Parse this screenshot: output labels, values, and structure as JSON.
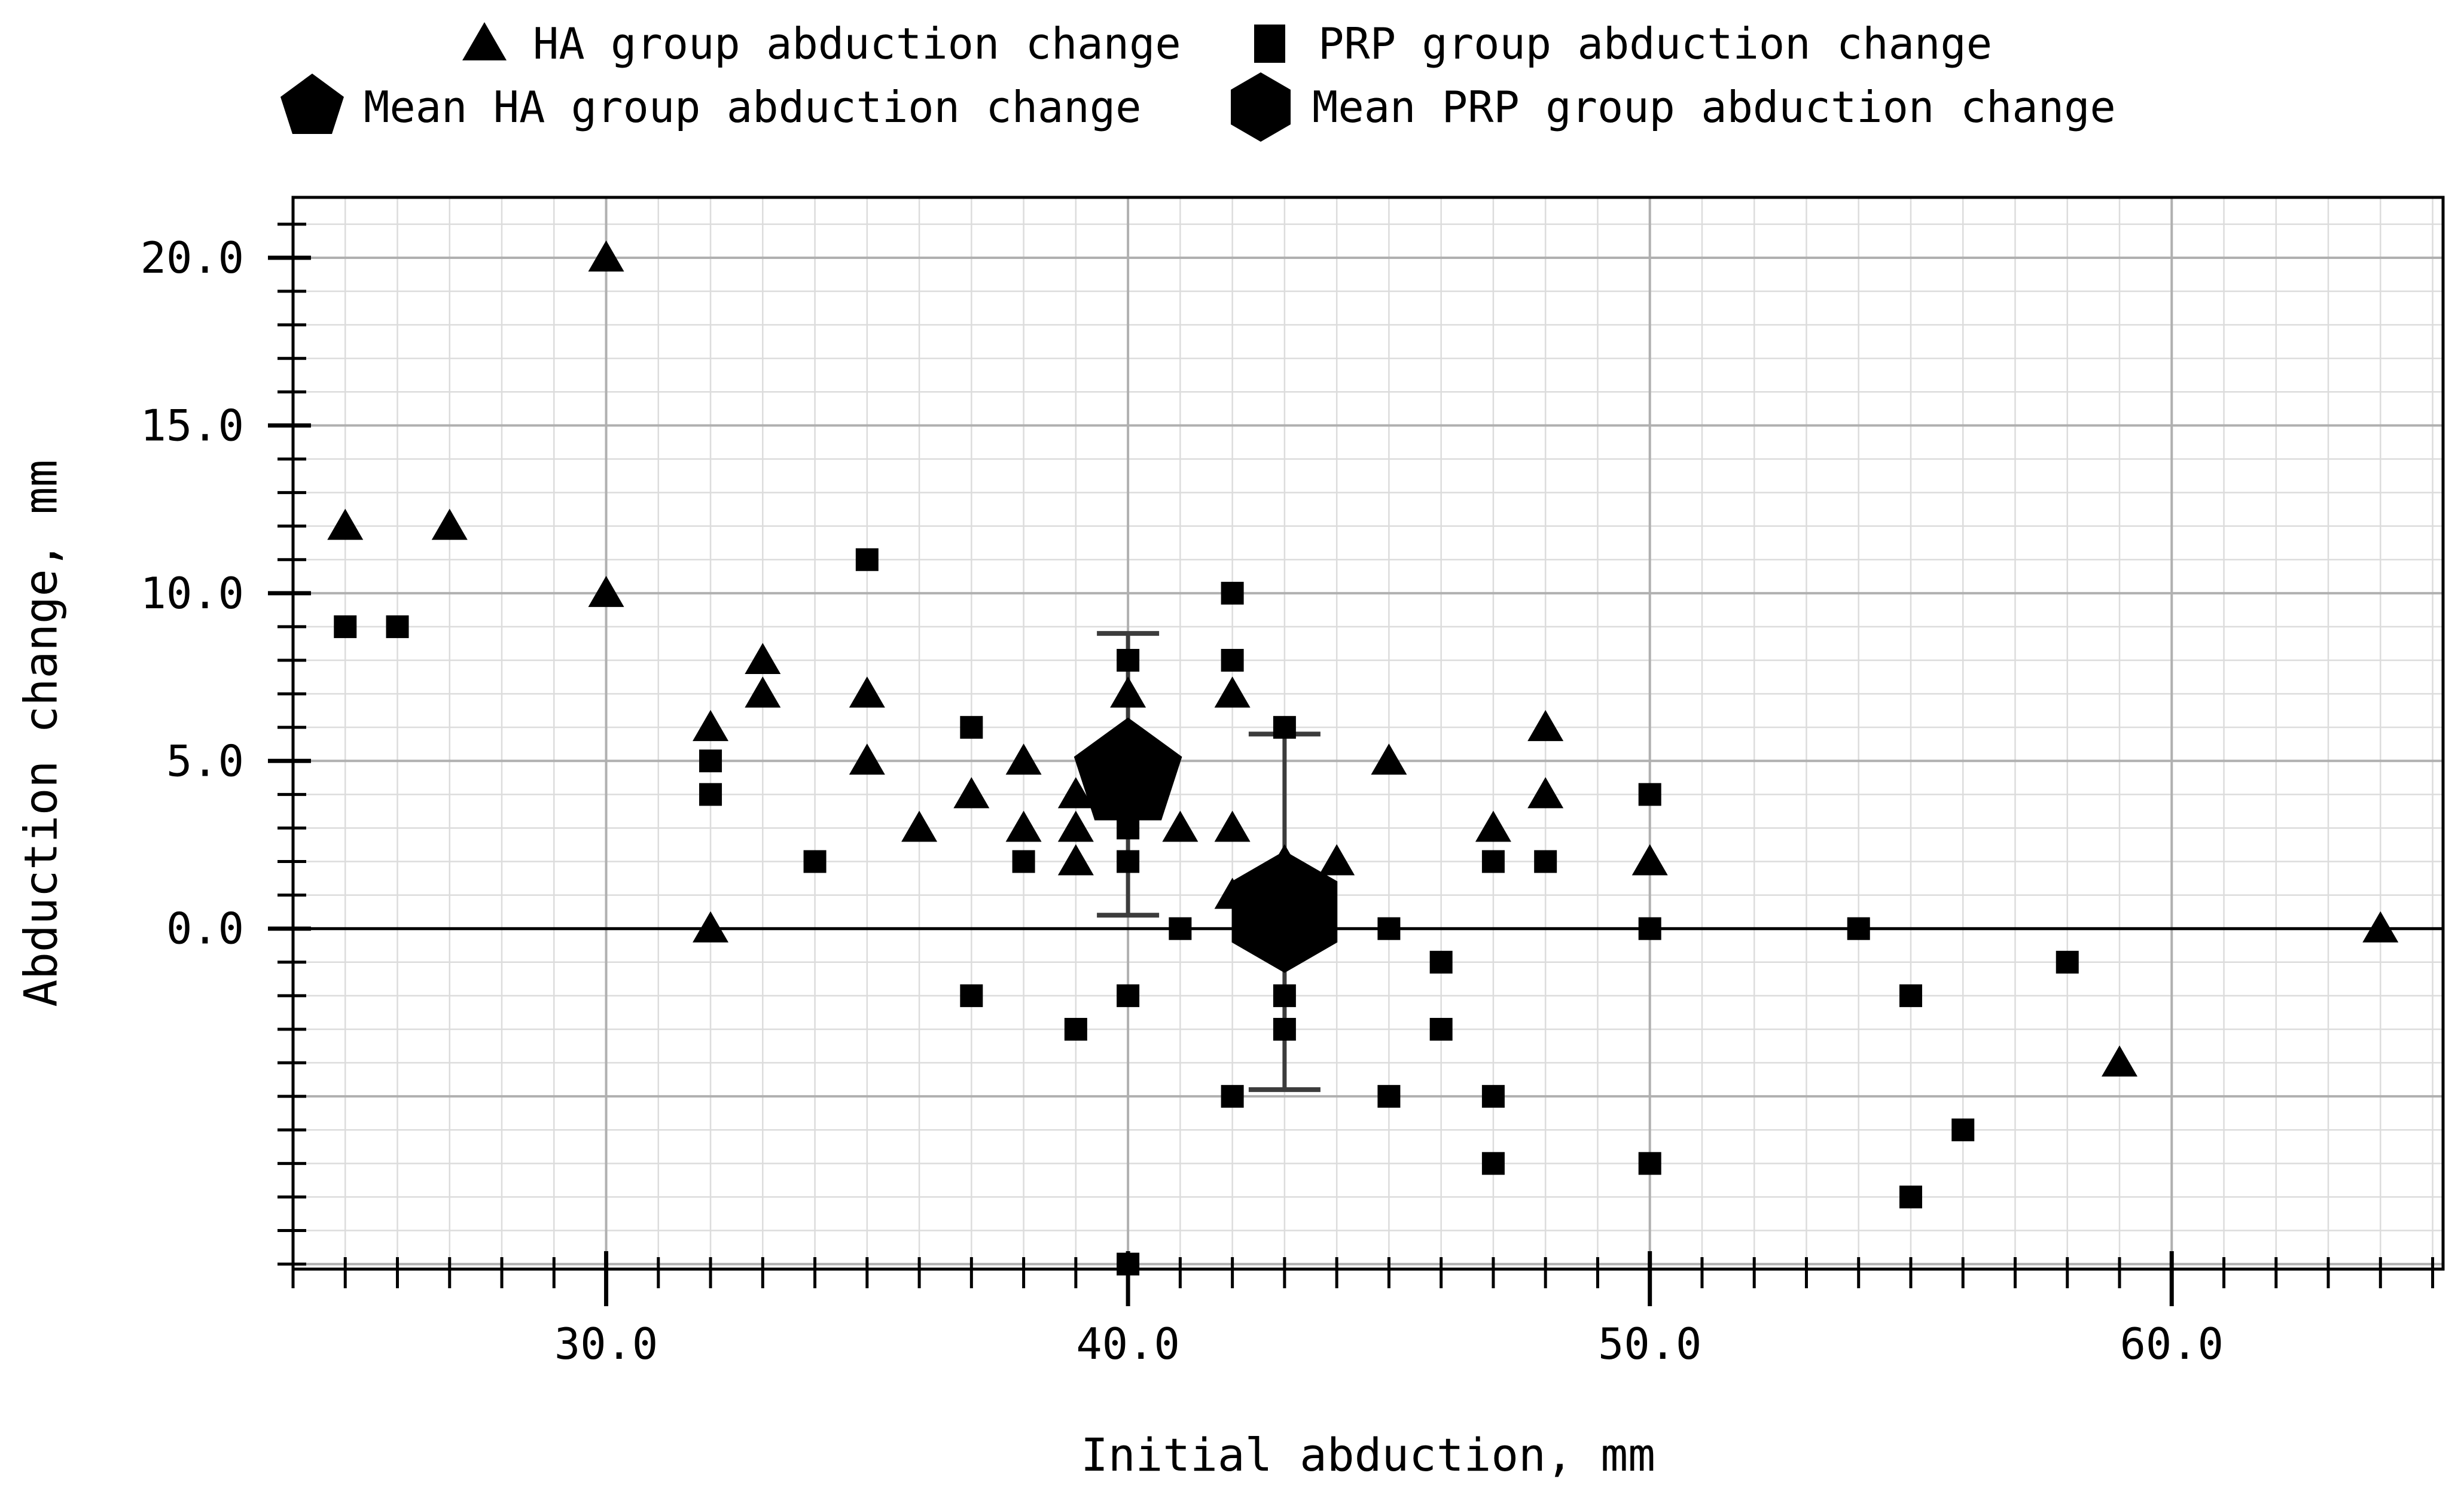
{
  "figure": {
    "background": "#ffffff",
    "ink_color": "#000000"
  },
  "legend": {
    "items": [
      {
        "marker": "triangle",
        "label": "HA group abduction change"
      },
      {
        "marker": "square",
        "label": "PRP group abduction change"
      },
      {
        "marker": "pentagon",
        "label": "Mean HA group abduction change"
      },
      {
        "marker": "hexagon",
        "label": "Mean PRP group abduction change"
      }
    ]
  },
  "axes": {
    "xlabel": "Initial abduction, mm",
    "ylabel": "Abduction change, mm",
    "x_ticks": [
      30,
      40,
      50,
      60
    ],
    "x_tick_labels": [
      "30.0",
      "40.0",
      "50.0",
      "60.0"
    ],
    "y_ticks": [
      0,
      5,
      10,
      15,
      20
    ],
    "y_tick_labels": [
      "0.0",
      "5.0",
      "10.0",
      "15.0",
      "20.0"
    ],
    "x_minor_step": 1,
    "y_minor_step": 1,
    "xlim": [
      24,
      65.2
    ],
    "ylim": [
      -10.15,
      21.8
    ],
    "grid": true,
    "zero_line": true
  },
  "chart_data": {
    "type": "scatter",
    "xlabel": "Initial abduction, mm",
    "ylabel": "Abduction change, mm",
    "xlim": [
      24,
      65.2
    ],
    "ylim": [
      -10.15,
      21.8
    ],
    "legend_position": "top",
    "marker_color": "#000000",
    "grid_minor_color": "#dcdcdc",
    "grid_major_color": "#b0b0b0",
    "errorbar_color": "#3c3c3c",
    "series": [
      {
        "name": "HA group abduction change",
        "marker": "triangle",
        "points": [
          [
            25,
            12
          ],
          [
            27,
            12
          ],
          [
            30,
            20
          ],
          [
            30,
            10
          ],
          [
            32,
            6
          ],
          [
            32,
            0
          ],
          [
            33,
            8
          ],
          [
            33,
            7
          ],
          [
            35,
            7
          ],
          [
            35,
            5
          ],
          [
            36,
            3
          ],
          [
            37,
            4
          ],
          [
            38,
            5
          ],
          [
            38,
            3
          ],
          [
            39,
            4
          ],
          [
            39,
            3
          ],
          [
            39,
            2
          ],
          [
            40,
            7
          ],
          [
            41,
            3
          ],
          [
            42,
            7
          ],
          [
            42,
            3
          ],
          [
            42,
            1
          ],
          [
            43,
            2
          ],
          [
            44,
            2
          ],
          [
            45,
            5
          ],
          [
            47,
            3
          ],
          [
            48,
            6
          ],
          [
            48,
            4
          ],
          [
            50,
            2
          ],
          [
            59,
            -4
          ],
          [
            64,
            0
          ]
        ]
      },
      {
        "name": "PRP group abduction change",
        "marker": "square",
        "points": [
          [
            25,
            9
          ],
          [
            26,
            9
          ],
          [
            32,
            5
          ],
          [
            32,
            4
          ],
          [
            34,
            2
          ],
          [
            35,
            11
          ],
          [
            37,
            6
          ],
          [
            37,
            -2
          ],
          [
            38,
            2
          ],
          [
            39,
            -3
          ],
          [
            40,
            8
          ],
          [
            40,
            3
          ],
          [
            40,
            2
          ],
          [
            40,
            -2
          ],
          [
            40,
            -10
          ],
          [
            41,
            0
          ],
          [
            42,
            10
          ],
          [
            42,
            8
          ],
          [
            42,
            -5
          ],
          [
            43,
            6
          ],
          [
            43,
            -2
          ],
          [
            43,
            -3
          ],
          [
            45,
            0
          ],
          [
            45,
            -5
          ],
          [
            46,
            -1
          ],
          [
            46,
            -3
          ],
          [
            47,
            2
          ],
          [
            47,
            -5
          ],
          [
            47,
            -7
          ],
          [
            48,
            2
          ],
          [
            50,
            4
          ],
          [
            50,
            0
          ],
          [
            50,
            -7
          ],
          [
            54,
            0
          ],
          [
            55,
            -2
          ],
          [
            55,
            -8
          ],
          [
            56,
            -6
          ],
          [
            58,
            -1
          ]
        ]
      }
    ],
    "means": [
      {
        "name": "Mean HA group abduction change",
        "marker": "pentagon",
        "x": 40,
        "y": 4.6,
        "err_low": 0.4,
        "err_high": 8.8
      },
      {
        "name": "Mean PRP group abduction change",
        "marker": "hexagon",
        "x": 43,
        "y": 0.5,
        "err_low": -4.8,
        "err_high": 5.8
      }
    ]
  }
}
